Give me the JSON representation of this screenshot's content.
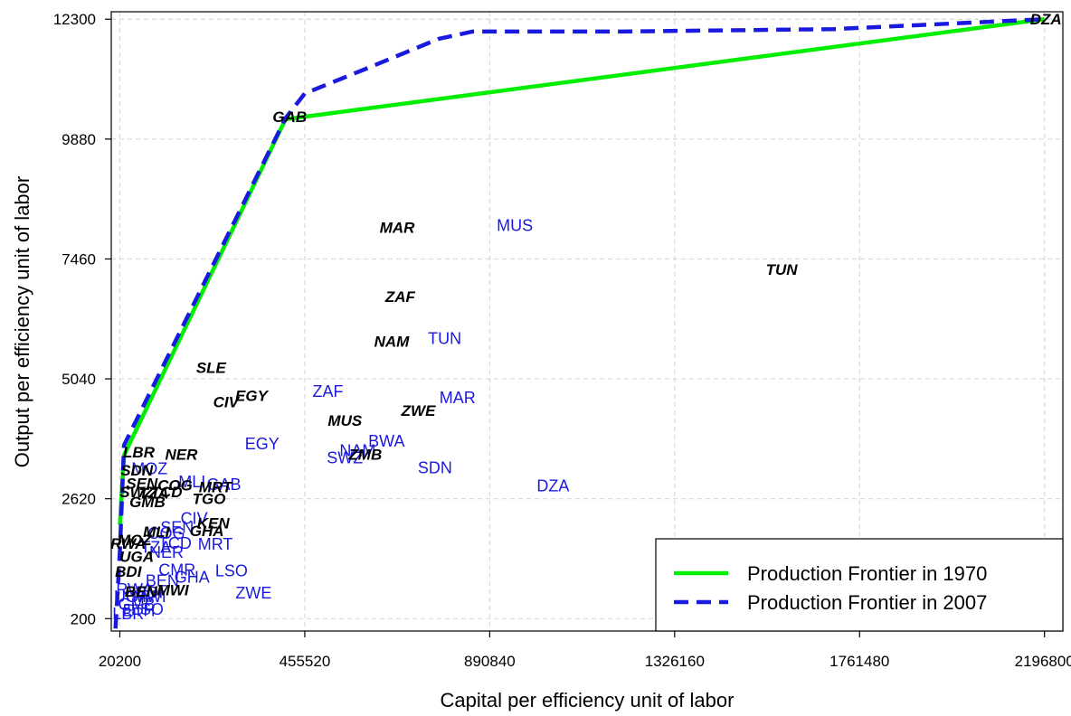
{
  "chart_data": {
    "type": "scatter",
    "xlabel": "Capital per efficiency unit of labor",
    "ylabel": "Output per efficiency unit of labor",
    "xlim": [
      0,
      2240000
    ],
    "ylim": [
      -50,
      12450
    ],
    "x_ticks": [
      20200,
      455520,
      890840,
      1326160,
      1761480,
      2196800
    ],
    "y_ticks": [
      200,
      2620,
      5040,
      7460,
      9880,
      12300
    ],
    "grid": true,
    "legend_position": "bottom-right",
    "colors": {
      "frontier_1970": "#00ee00",
      "frontier_2007": "#1a1adf",
      "labels_1970": "#000000",
      "labels_2007": "#1a1adf"
    },
    "series": [
      {
        "name": "Production Frontier in 1970",
        "style": "solid",
        "x": [
          20200,
          30000,
          410000,
          2196800
        ],
        "y": [
          2100,
          3500,
          10280,
          12300
        ]
      },
      {
        "name": "Production Frontier in 2007",
        "style": "dashed",
        "x": [
          10000,
          20000,
          30000,
          410000,
          455520,
          600000,
          770000,
          850000,
          1200000,
          1700000,
          2196800
        ],
        "y": [
          0,
          1500,
          3700,
          10300,
          10800,
          11300,
          11900,
          12050,
          12050,
          12100,
          12300
        ]
      }
    ],
    "labels_1970": [
      {
        "text": "DZA",
        "x": 2200000,
        "y": 12300
      },
      {
        "text": "GAB",
        "x": 420000,
        "y": 10330
      },
      {
        "text": "MAR",
        "x": 673000,
        "y": 8100
      },
      {
        "text": "TUN",
        "x": 1578000,
        "y": 7250
      },
      {
        "text": "ZAF",
        "x": 680000,
        "y": 6700
      },
      {
        "text": "NAM",
        "x": 660000,
        "y": 5800
      },
      {
        "text": "SLE",
        "x": 235000,
        "y": 5270
      },
      {
        "text": "EGY",
        "x": 330000,
        "y": 4700
      },
      {
        "text": "CIV",
        "x": 270000,
        "y": 4580
      },
      {
        "text": "ZWE",
        "x": 723000,
        "y": 4400
      },
      {
        "text": "MUS",
        "x": 550000,
        "y": 4200
      },
      {
        "text": "ZMB",
        "x": 598000,
        "y": 3520
      },
      {
        "text": "LBR",
        "x": 65000,
        "y": 3560
      },
      {
        "text": "NER",
        "x": 165000,
        "y": 3520
      },
      {
        "text": "SDN",
        "x": 60000,
        "y": 3200
      },
      {
        "text": "SEN",
        "x": 72000,
        "y": 2930
      },
      {
        "text": "COG",
        "x": 150000,
        "y": 2900
      },
      {
        "text": "MRT",
        "x": 245000,
        "y": 2860
      },
      {
        "text": "SWZ",
        "x": 60000,
        "y": 2760
      },
      {
        "text": "TZA",
        "x": 100000,
        "y": 2730
      },
      {
        "text": "TCD",
        "x": 130000,
        "y": 2760
      },
      {
        "text": "GMB",
        "x": 85000,
        "y": 2560
      },
      {
        "text": "TGO",
        "x": 230000,
        "y": 2620
      },
      {
        "text": "KEN",
        "x": 240000,
        "y": 2130
      },
      {
        "text": "GHA",
        "x": 225000,
        "y": 1980
      },
      {
        "text": "MLI",
        "x": 106000,
        "y": 1960
      },
      {
        "text": "MOZ",
        "x": 55000,
        "y": 1790
      },
      {
        "text": "RWA",
        "x": 40000,
        "y": 1720
      },
      {
        "text": "UGA",
        "x": 60000,
        "y": 1460
      },
      {
        "text": "BDI",
        "x": 40000,
        "y": 1150
      },
      {
        "text": "BEN",
        "x": 70000,
        "y": 750
      },
      {
        "text": "MWI",
        "x": 145000,
        "y": 780
      }
    ],
    "labels_2007": [
      {
        "text": "MUS",
        "x": 950000,
        "y": 8130
      },
      {
        "text": "TUN",
        "x": 785000,
        "y": 5850
      },
      {
        "text": "ZAF",
        "x": 510000,
        "y": 4790
      },
      {
        "text": "MAR",
        "x": 815000,
        "y": 4660
      },
      {
        "text": "EGY",
        "x": 355000,
        "y": 3730
      },
      {
        "text": "BWA",
        "x": 648000,
        "y": 3780
      },
      {
        "text": "NAM",
        "x": 580000,
        "y": 3590
      },
      {
        "text": "SWZ",
        "x": 550000,
        "y": 3440
      },
      {
        "text": "SDN",
        "x": 762000,
        "y": 3240
      },
      {
        "text": "DZA",
        "x": 1040000,
        "y": 2880
      },
      {
        "text": "MOZ",
        "x": 90000,
        "y": 3230
      },
      {
        "text": "MLI",
        "x": 190000,
        "y": 2960
      },
      {
        "text": "GAB",
        "x": 265000,
        "y": 2910
      },
      {
        "text": "CIV",
        "x": 195000,
        "y": 2220
      },
      {
        "text": "SEN",
        "x": 155000,
        "y": 2040
      },
      {
        "text": "COG",
        "x": 130000,
        "y": 1920
      },
      {
        "text": "TCD",
        "x": 150000,
        "y": 1720
      },
      {
        "text": "TZA",
        "x": 105000,
        "y": 1640
      },
      {
        "text": "MRT",
        "x": 245000,
        "y": 1700
      },
      {
        "text": "NER",
        "x": 130000,
        "y": 1540
      },
      {
        "text": "LSO",
        "x": 283000,
        "y": 1160
      },
      {
        "text": "CMR",
        "x": 155000,
        "y": 1180
      },
      {
        "text": "GHA",
        "x": 190000,
        "y": 1040
      },
      {
        "text": "BEN",
        "x": 120000,
        "y": 960
      },
      {
        "text": "ZWE",
        "x": 335000,
        "y": 720
      },
      {
        "text": "BDI",
        "x": 90000,
        "y": 730
      },
      {
        "text": "RWA",
        "x": 55000,
        "y": 790
      },
      {
        "text": "UGA",
        "x": 48000,
        "y": 640
      },
      {
        "text": "MWI",
        "x": 90000,
        "y": 640
      },
      {
        "text": "GMB",
        "x": 60000,
        "y": 490
      },
      {
        "text": "ETH",
        "x": 65000,
        "y": 360
      },
      {
        "text": "LSO",
        "x": 85000,
        "y": 390
      },
      {
        "text": "LBR",
        "x": 40000,
        "y": 300
      }
    ]
  }
}
